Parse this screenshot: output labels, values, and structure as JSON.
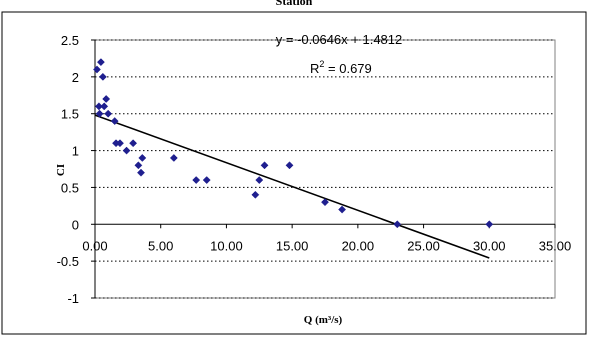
{
  "chart_data": {
    "type": "scatter",
    "title": "Station",
    "xlabel": "Q (m³/s)",
    "ylabel": "CI",
    "xlim": [
      0,
      35
    ],
    "ylim": [
      -1,
      2.5
    ],
    "x_ticks": [
      "0.00",
      "5.00",
      "10.00",
      "15.00",
      "20.00",
      "25.00",
      "30.00",
      "35.00"
    ],
    "y_ticks": [
      "2.5",
      "2",
      "1.5",
      "1",
      "0.5",
      "0",
      "-0.5",
      "-1"
    ],
    "y_tick_values": [
      2.5,
      2,
      1.5,
      1,
      0.5,
      0,
      -0.5,
      -1
    ],
    "x_tick_values": [
      0,
      5,
      10,
      15,
      20,
      25,
      30,
      35
    ],
    "grid": "horizontal-dotted",
    "marker_color": "#1f1f8f",
    "points": [
      {
        "x": 0.15,
        "y": 2.1
      },
      {
        "x": 0.3,
        "y": 1.6
      },
      {
        "x": 0.35,
        "y": 1.5
      },
      {
        "x": 0.45,
        "y": 2.2
      },
      {
        "x": 0.6,
        "y": 2.0
      },
      {
        "x": 0.7,
        "y": 1.6
      },
      {
        "x": 0.85,
        "y": 1.7
      },
      {
        "x": 1.0,
        "y": 1.5
      },
      {
        "x": 1.5,
        "y": 1.4
      },
      {
        "x": 1.6,
        "y": 1.1
      },
      {
        "x": 1.9,
        "y": 1.1
      },
      {
        "x": 2.4,
        "y": 1.0
      },
      {
        "x": 2.9,
        "y": 1.1
      },
      {
        "x": 3.3,
        "y": 0.8
      },
      {
        "x": 3.5,
        "y": 0.7
      },
      {
        "x": 3.6,
        "y": 0.9
      },
      {
        "x": 6.0,
        "y": 0.9
      },
      {
        "x": 7.7,
        "y": 0.6
      },
      {
        "x": 8.5,
        "y": 0.6
      },
      {
        "x": 12.2,
        "y": 0.4
      },
      {
        "x": 12.5,
        "y": 0.6
      },
      {
        "x": 12.9,
        "y": 0.8
      },
      {
        "x": 14.8,
        "y": 0.8
      },
      {
        "x": 17.5,
        "y": 0.3
      },
      {
        "x": 18.8,
        "y": 0.2
      },
      {
        "x": 23.0,
        "y": 0.0
      },
      {
        "x": 30.0,
        "y": 0.0
      }
    ],
    "trendline": {
      "slope": -0.0646,
      "intercept": 1.4812,
      "x_start": 0,
      "x_end": 30,
      "equation": "y = -0.0646x + 1.4812",
      "r2_prefix": "R",
      "r2_sup": "2",
      "r2_value": " = 0.679"
    }
  }
}
